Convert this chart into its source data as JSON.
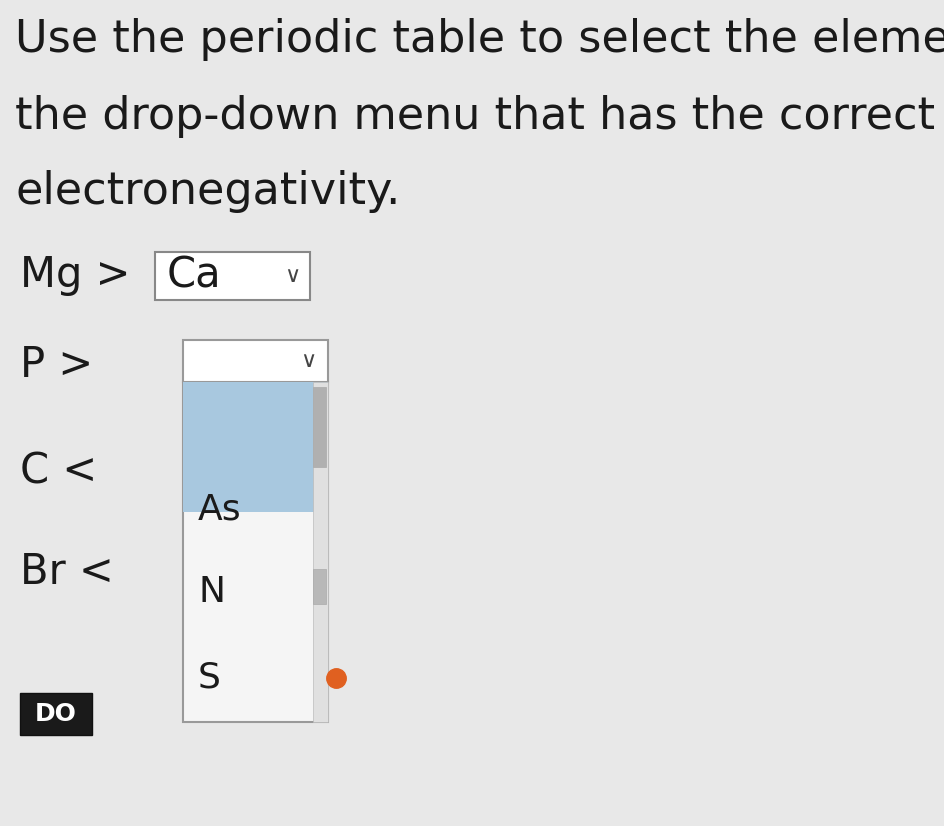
{
  "bg_color": "#e8e8e8",
  "title_lines": [
    "Use the periodic table to select the eleme",
    "the drop-down menu that has the correct r",
    "electronegativity."
  ],
  "title_fontsize": 32,
  "title_color": "#1a1a1a",
  "row1_label": "Mg >",
  "row1_dropdown_text": "Ca",
  "row2_label": "P >",
  "row3_label": "C <",
  "row4_label": "Br <",
  "do_button_text": "DO",
  "dropdown_items": [
    "As",
    "N",
    "S"
  ],
  "dropdown_highlight_color": "#a8c8df",
  "dropdown_bg": "#f2f2f2",
  "dropdown_border": "#999999",
  "scrollbar_color": "#c0c0c0",
  "orange_dot_color": "#e06020",
  "label_fontsize": 30,
  "dropdown_fontsize": 26
}
